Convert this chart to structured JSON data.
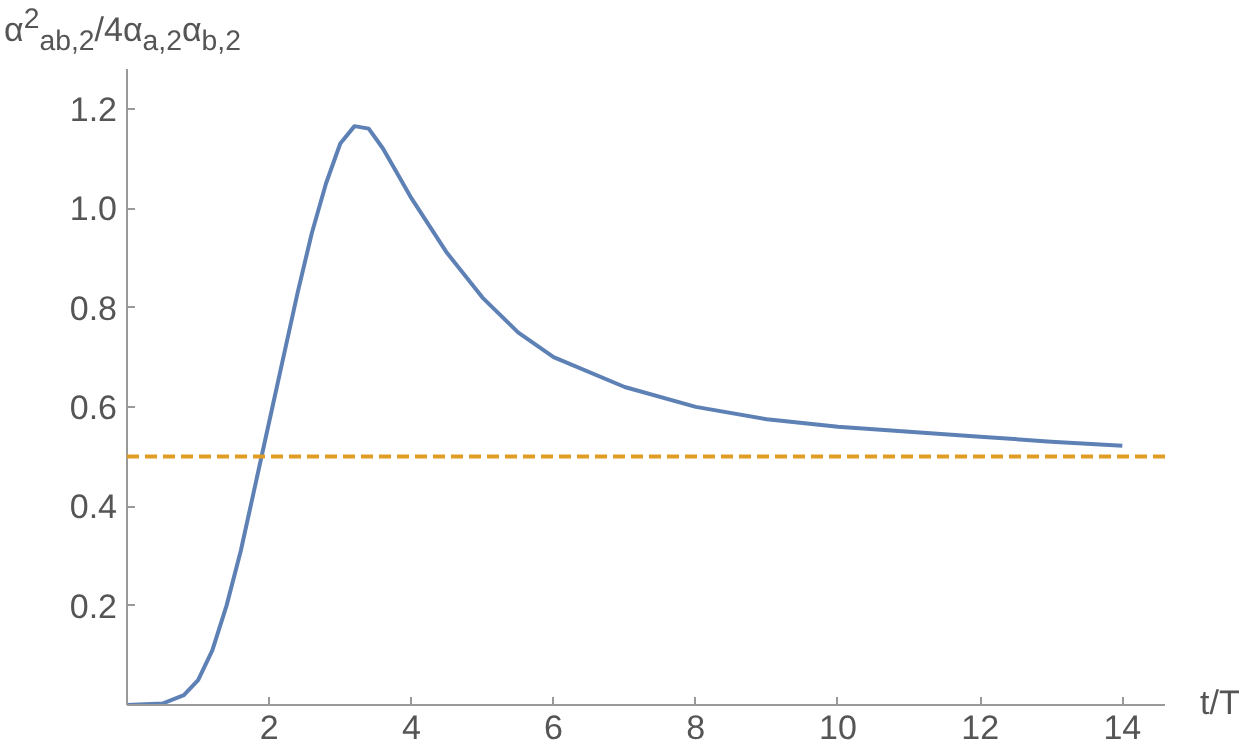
{
  "chart_data": {
    "type": "line",
    "ylabel": "α$^{2}$$_{ab,2}$/4α$_{a,2}$α$_{b,2}$",
    "xlabel": "t/T",
    "x": [
      0,
      0.5,
      0.8,
      1.0,
      1.2,
      1.4,
      1.6,
      1.8,
      2.0,
      2.2,
      2.4,
      2.6,
      2.8,
      3.0,
      3.2,
      3.4,
      3.6,
      3.8,
      4.0,
      4.5,
      5,
      5.5,
      6,
      7,
      8,
      9,
      10,
      11,
      12,
      13,
      14
    ],
    "series": [
      {
        "color": "#5e81b5",
        "values": [
          0,
          0.003,
          0.02,
          0.05,
          0.11,
          0.2,
          0.31,
          0.44,
          0.57,
          0.7,
          0.83,
          0.95,
          1.05,
          1.13,
          1.165,
          1.16,
          1.12,
          1.07,
          1.02,
          0.91,
          0.82,
          0.75,
          0.7,
          0.64,
          0.6,
          0.575,
          0.56,
          0.55,
          0.54,
          0.53,
          0.522
        ]
      }
    ],
    "ref_lines": [
      {
        "axis": "y",
        "value": 0.5,
        "color": "#e19c24",
        "line_style": "dashed"
      }
    ],
    "xlim": [
      0,
      14.6
    ],
    "ylim": [
      0,
      1.28
    ],
    "xticks": [
      2,
      4,
      6,
      8,
      10,
      12,
      14
    ],
    "yticks": [
      0.2,
      0.4,
      0.6,
      0.8,
      {
        "value": 1.0,
        "label": "1.0"
      },
      1.2
    ],
    "grid": false
  }
}
